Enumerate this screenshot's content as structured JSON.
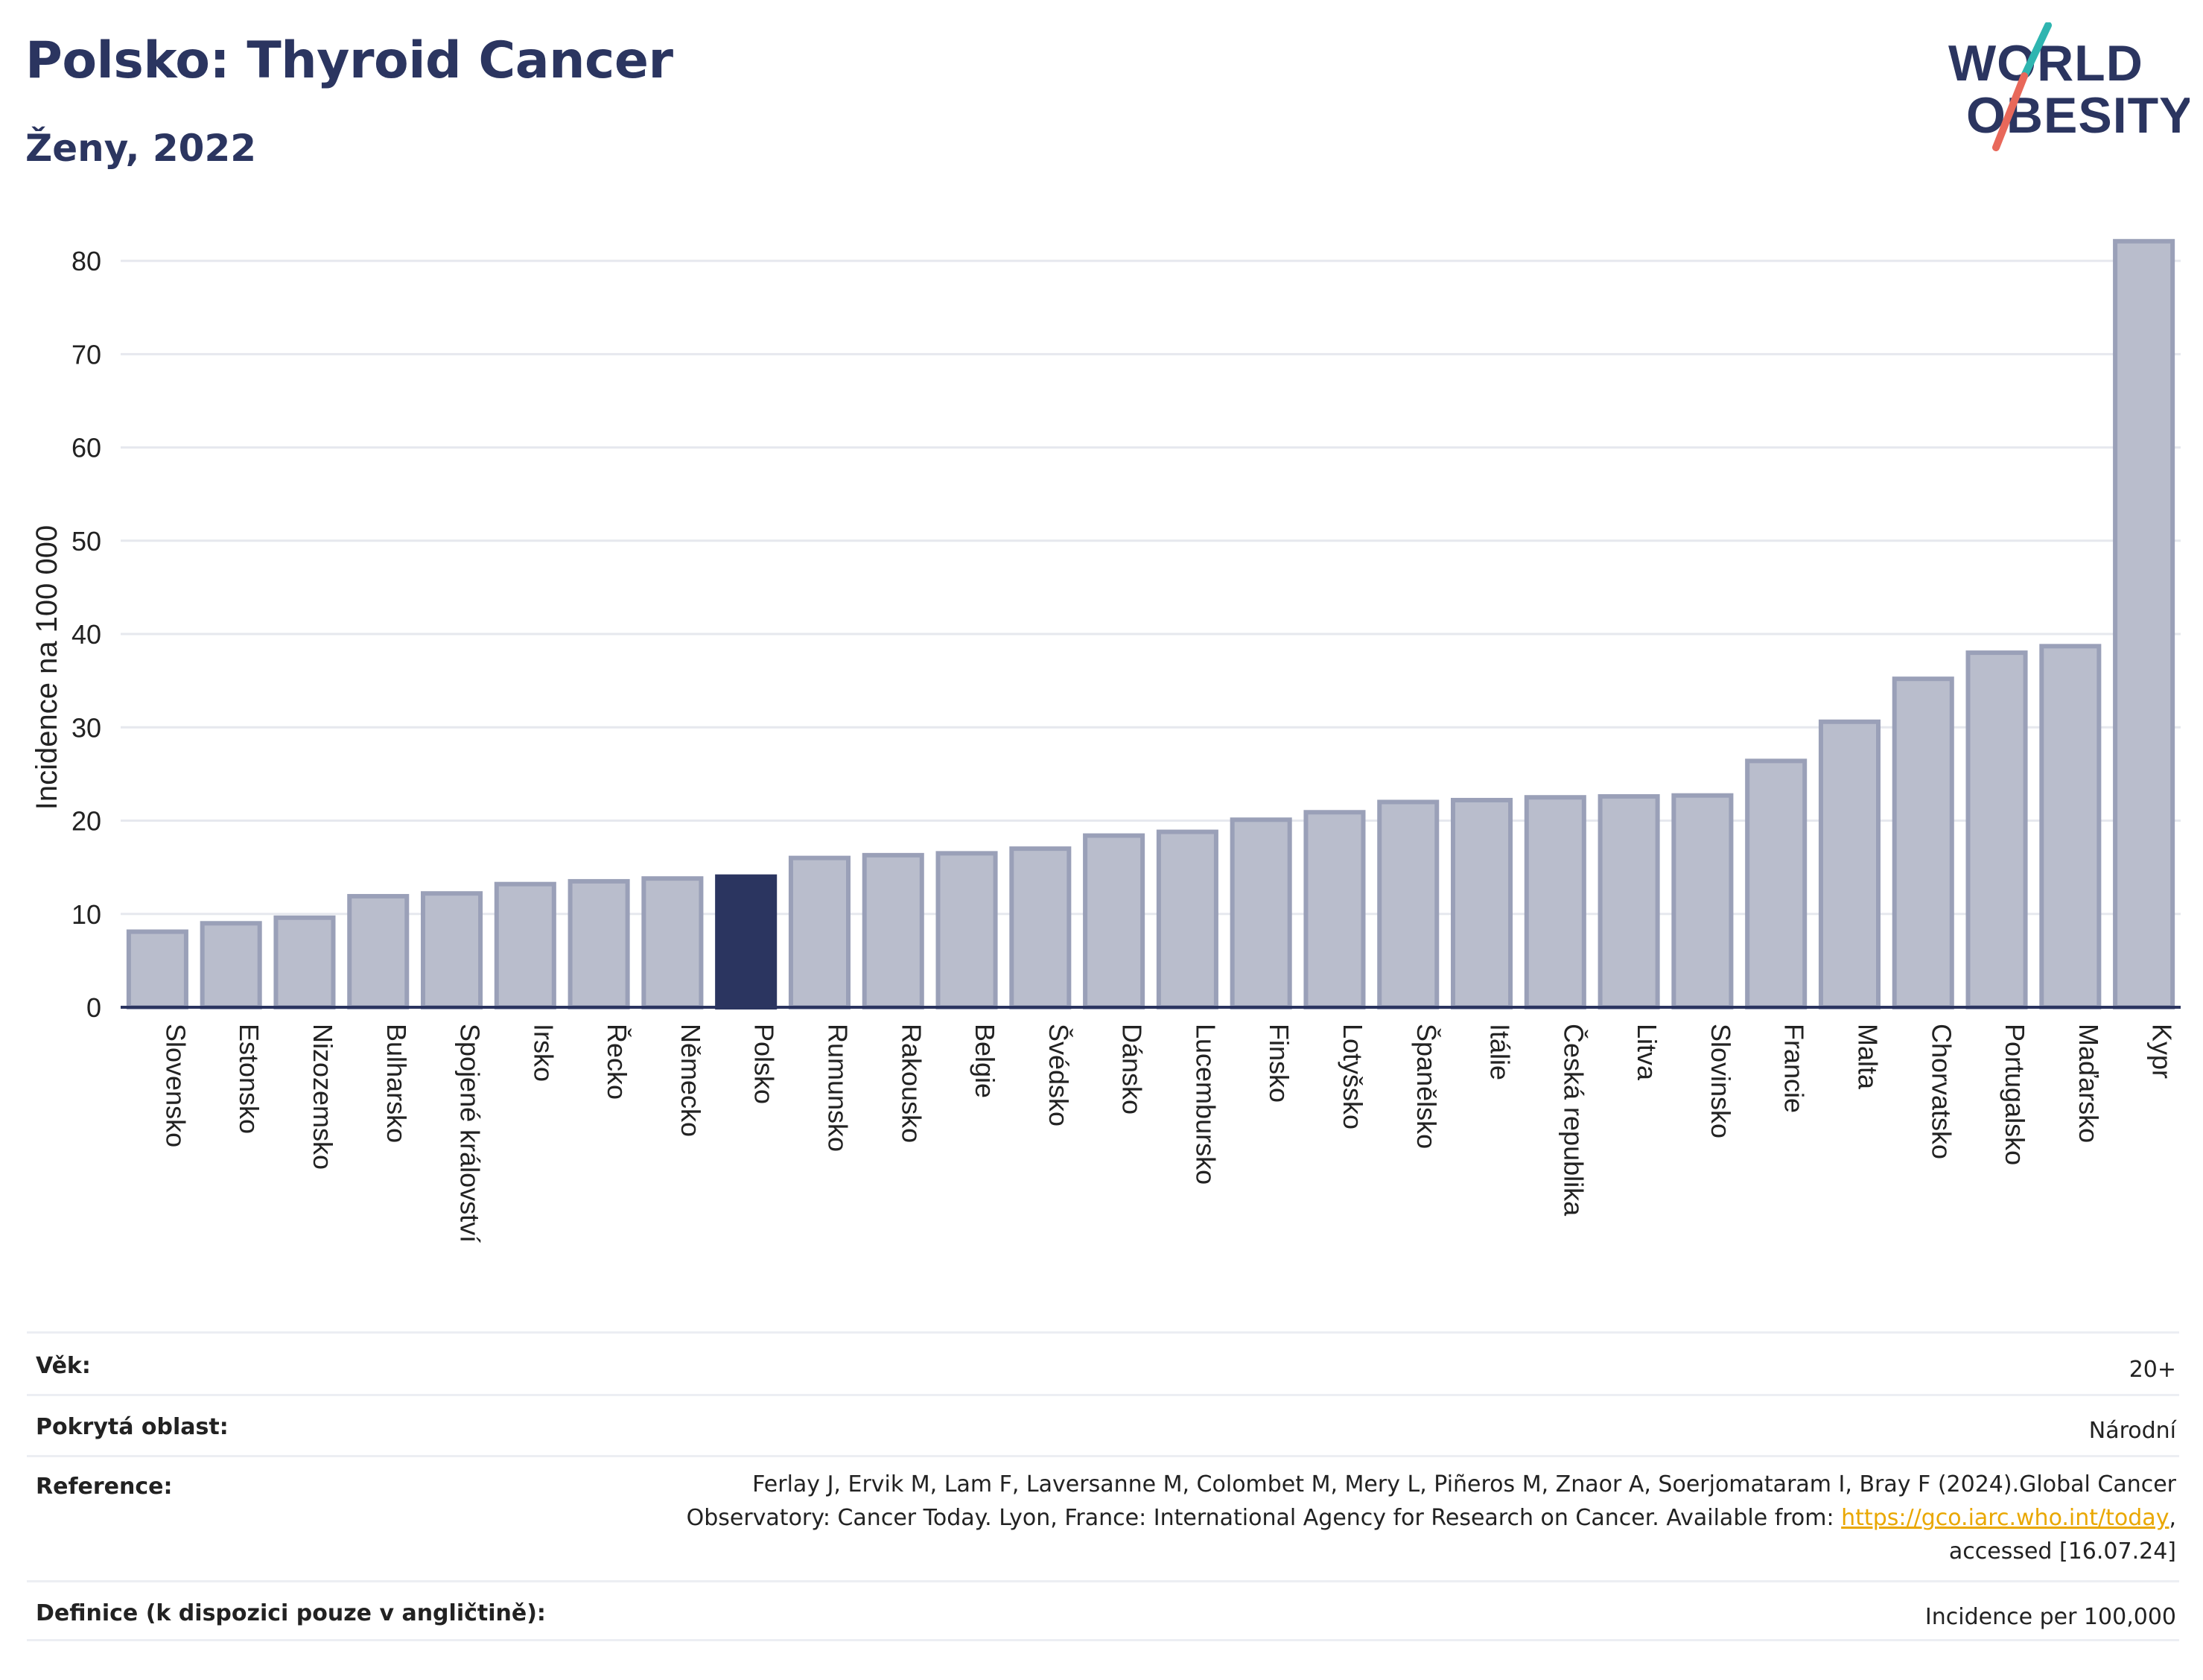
{
  "header": {
    "title": "Polsko: Thyroid Cancer",
    "subtitle": "Ženy, 2022"
  },
  "logo": {
    "line1": "WORLD",
    "line2": "OBESITY",
    "slash_colors": [
      "#2fb5b0",
      "#e8685a"
    ],
    "text_color": "#2b3560"
  },
  "chart_data": {
    "type": "bar",
    "ylabel": "Incidence na 100 000",
    "xlabel": "",
    "ylim": [
      0,
      84
    ],
    "yticks": [
      0,
      10,
      20,
      30,
      40,
      50,
      60,
      70,
      80
    ],
    "grid": true,
    "highlight": "Polsko",
    "colors": {
      "bar": "#b9bdcc",
      "bar_border": "#9aa0b8",
      "highlight": "#2b3560"
    },
    "categories": [
      "Slovensko",
      "Estonsko",
      "Nizozemsko",
      "Bulharsko",
      "Spojené království",
      "Irsko",
      "Řecko",
      "Německo",
      "Polsko",
      "Rumunsko",
      "Rakousko",
      "Belgie",
      "Švédsko",
      "Dánsko",
      "Lucembursko",
      "Finsko",
      "Lotyšsko",
      "Španělsko",
      "Itálie",
      "Česká republika",
      "Litva",
      "Slovinsko",
      "Francie",
      "Malta",
      "Chorvatsko",
      "Portugalsko",
      "Maďarsko",
      "Kypr"
    ],
    "values": [
      8.1,
      9.0,
      9.6,
      11.9,
      12.2,
      13.2,
      13.5,
      13.8,
      14.0,
      16.0,
      16.3,
      16.5,
      17.0,
      18.4,
      18.8,
      20.1,
      20.9,
      22.0,
      22.2,
      22.5,
      22.6,
      22.7,
      26.4,
      30.6,
      35.2,
      38.0,
      38.7,
      82.1
    ]
  },
  "meta": {
    "rows": [
      {
        "label": "Věk:",
        "value": "20+"
      },
      {
        "label": "Pokrytá oblast:",
        "value": "Národní"
      },
      {
        "label": "Reference:",
        "value_line1": "Ferlay J, Ervik M, Lam F, Laversanne M, Colombet M, Mery L, Piñeros M, Znaor A, Soerjomataram I, Bray F (2024).Global Cancer",
        "value_line2_pre": "Observatory: Cancer Today. Lyon, France: International Agency for Research on Cancer. Available from: ",
        "link": "https://gco.iarc.who.int/today",
        "value_line2_post": ",",
        "value_line3": "accessed [16.07.24]"
      },
      {
        "label": "Definice (k dispozici pouze v angličtině):",
        "value": "Incidence per 100,000"
      }
    ]
  }
}
